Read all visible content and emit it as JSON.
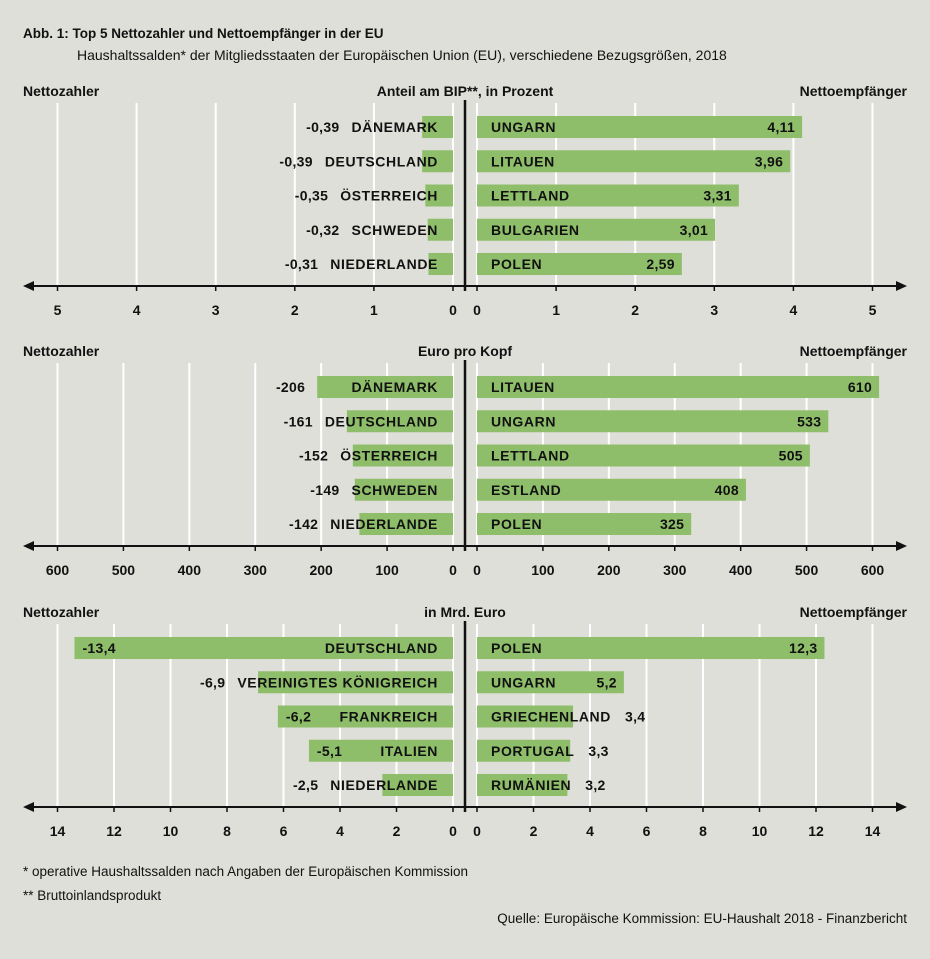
{
  "figure": {
    "title": "Abb. 1: Top 5 Nettozahler und Nettoempfänger in der EU",
    "subtitle": "Haushaltssalden* der Mitgliedsstaaten der Europäischen Union (EU), verschiedene Bezugsgrößen, 2018",
    "footnotes": [
      "* operative Haushaltssalden nach Angaben der Europäischen Kommission",
      "** Bruttoinlandsprodukt"
    ],
    "source": "Quelle: Europäische Kommission: EU-Haushalt 2018 - Finanzbericht"
  },
  "colors": {
    "background": "#dfdfd9",
    "bar": "#8fbe6a",
    "grid": "#ffffff",
    "axis": "#111111",
    "text": "#111111"
  },
  "chart_data": [
    {
      "type": "bar",
      "orientation": "horizontal",
      "title": "Anteil am BIP**, in Prozent",
      "x_range": [
        -5,
        5
      ],
      "ticks": [
        0,
        1,
        2,
        3,
        4,
        5
      ],
      "grid": true,
      "series": [
        {
          "name": "Nettozahler",
          "categories": [
            "DÄNEMARK",
            "DEUTSCHLAND",
            "ÖSTERREICH",
            "SCHWEDEN",
            "NIEDERLANDE"
          ],
          "values": [
            -0.39,
            -0.39,
            -0.35,
            -0.32,
            -0.31
          ],
          "value_labels": [
            "-0,39",
            "-0,39",
            "-0,35",
            "-0,32",
            "-0,31"
          ]
        },
        {
          "name": "Nettoempfänger",
          "categories": [
            "UNGARN",
            "LITAUEN",
            "LETTLAND",
            "BULGARIEN",
            "POLEN"
          ],
          "values": [
            4.11,
            3.96,
            3.31,
            3.01,
            2.59
          ],
          "value_labels": [
            "4,11",
            "3,96",
            "3,31",
            "3,01",
            "2,59"
          ]
        }
      ]
    },
    {
      "type": "bar",
      "orientation": "horizontal",
      "title": "Euro pro Kopf",
      "x_range": [
        -600,
        600
      ],
      "ticks": [
        0,
        100,
        200,
        300,
        400,
        500,
        600
      ],
      "grid": true,
      "series": [
        {
          "name": "Nettozahler",
          "categories": [
            "DÄNEMARK",
            "DEUTSCHLAND",
            "ÖSTERREICH",
            "SCHWEDEN",
            "NIEDERLANDE"
          ],
          "values": [
            -206,
            -161,
            -152,
            -149,
            -142
          ],
          "value_labels": [
            "-206",
            "-161",
            "-152",
            "-149",
            "-142"
          ]
        },
        {
          "name": "Nettoempfänger",
          "categories": [
            "LITAUEN",
            "UNGARN",
            "LETTLAND",
            "ESTLAND",
            "POLEN"
          ],
          "values": [
            610,
            533,
            505,
            408,
            325
          ],
          "value_labels": [
            "610",
            "533",
            "505",
            "408",
            "325"
          ]
        }
      ]
    },
    {
      "type": "bar",
      "orientation": "horizontal",
      "title": "in Mrd. Euro",
      "x_range": [
        -14,
        14
      ],
      "ticks": [
        0,
        2,
        4,
        6,
        8,
        10,
        12,
        14
      ],
      "grid": true,
      "series": [
        {
          "name": "Nettozahler",
          "categories": [
            "DEUTSCHLAND",
            "VEREINIGTES KÖNIGREICH",
            "FRANKREICH",
            "ITALIEN",
            "NIEDERLANDE"
          ],
          "values": [
            -13.4,
            -6.9,
            -6.2,
            -5.1,
            -2.5
          ],
          "value_labels": [
            "-13,4",
            "-6,9",
            "-6,2",
            "-5,1",
            "-2,5"
          ]
        },
        {
          "name": "Nettoempfänger",
          "categories": [
            "POLEN",
            "UNGARN",
            "GRIECHENLAND",
            "PORTUGAL",
            "RUMÄNIEN"
          ],
          "values": [
            12.3,
            5.2,
            3.4,
            3.3,
            3.2
          ],
          "value_labels": [
            "12,3",
            "5,2",
            "3,4",
            "3,3",
            "3,2"
          ]
        }
      ]
    }
  ]
}
